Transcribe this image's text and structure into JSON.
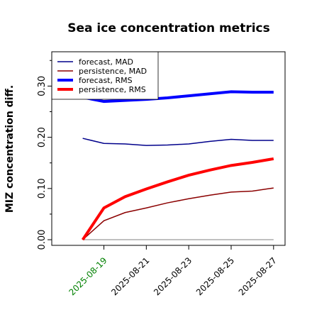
{
  "chart_data": {
    "type": "line",
    "title": "Sea ice concentration metrics",
    "y_label": "MIZ concentration diff.",
    "x": [
      "2025-08-18",
      "2025-08-19",
      "2025-08-20",
      "2025-08-21",
      "2025-08-22",
      "2025-08-23",
      "2025-08-24",
      "2025-08-25",
      "2025-08-26",
      "2025-08-27"
    ],
    "series": [
      {
        "name": "forecast,  MAD",
        "color": "#00008b",
        "width": 1.5,
        "values": [
          0.198,
          0.188,
          0.187,
          0.184,
          0.185,
          0.187,
          0.192,
          0.196,
          0.194,
          0.194
        ]
      },
      {
        "name": "persistence, MAD",
        "color": "#8b0000",
        "width": 1.5,
        "values": [
          0,
          0.037,
          0.053,
          0.062,
          0.072,
          0.08,
          0.087,
          0.093,
          0.095,
          0.101
        ]
      },
      {
        "name": "forecast,  RMS",
        "color": "#0000ff",
        "width": 4,
        "values": [
          0.278,
          0.27,
          0.272,
          0.274,
          0.277,
          0.281,
          0.285,
          0.289,
          0.288,
          0.288
        ]
      },
      {
        "name": "persistence, RMS",
        "color": "#ff0000",
        "width": 4,
        "values": [
          0,
          0.062,
          0.084,
          0.099,
          0.113,
          0.126,
          0.136,
          0.145,
          0.151,
          0.158
        ]
      }
    ],
    "reference_line": {
      "value": 0,
      "color": "gray"
    },
    "xlim": [
      "2025-08-16T13:00",
      "2025-08-27T13:00"
    ],
    "xticks": [
      "2025-08-19",
      "2025-08-21",
      "2025-08-23",
      "2025-08-25",
      "2025-08-27"
    ],
    "xtick_colors": [
      "green",
      "black",
      "black",
      "black",
      "black"
    ],
    "ylim": [
      -0.011,
      0.367
    ],
    "yticks": [
      {
        "value": 0,
        "label": "0.00"
      },
      {
        "value": 0.1,
        "label": "0.10"
      },
      {
        "value": 0.2,
        "label": "0.20"
      },
      {
        "value": 0.3,
        "label": "0.30"
      }
    ],
    "yminorticks": [
      0.05,
      0.15,
      0.25,
      0.35
    ],
    "legend": "upper left"
  }
}
